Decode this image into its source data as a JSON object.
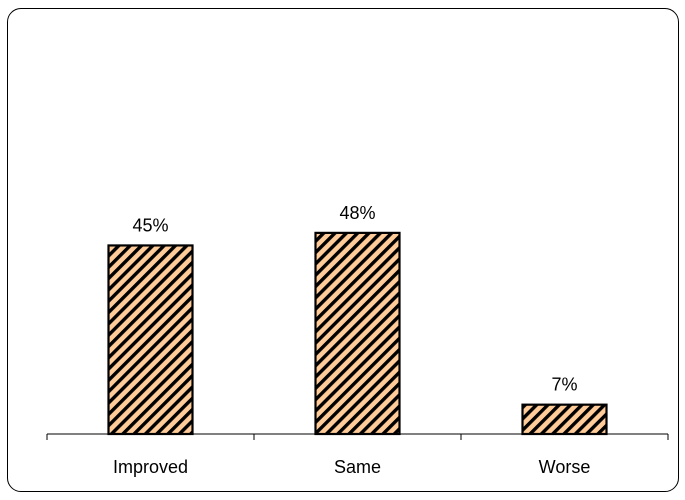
{
  "chart_data": {
    "type": "bar",
    "categories": [
      "Improved",
      "Same",
      "Worse"
    ],
    "values": [
      45,
      48,
      7
    ],
    "value_labels": [
      "45%",
      "48%",
      "7%"
    ],
    "title": "",
    "xlabel": "",
    "ylabel": "",
    "ylim": [
      0,
      100
    ],
    "grid": false,
    "legend": "none",
    "bar_fill_color": "#FFCC99",
    "bar_hatch_color": "#000000",
    "bar_pattern": "diagonal-hatch"
  }
}
